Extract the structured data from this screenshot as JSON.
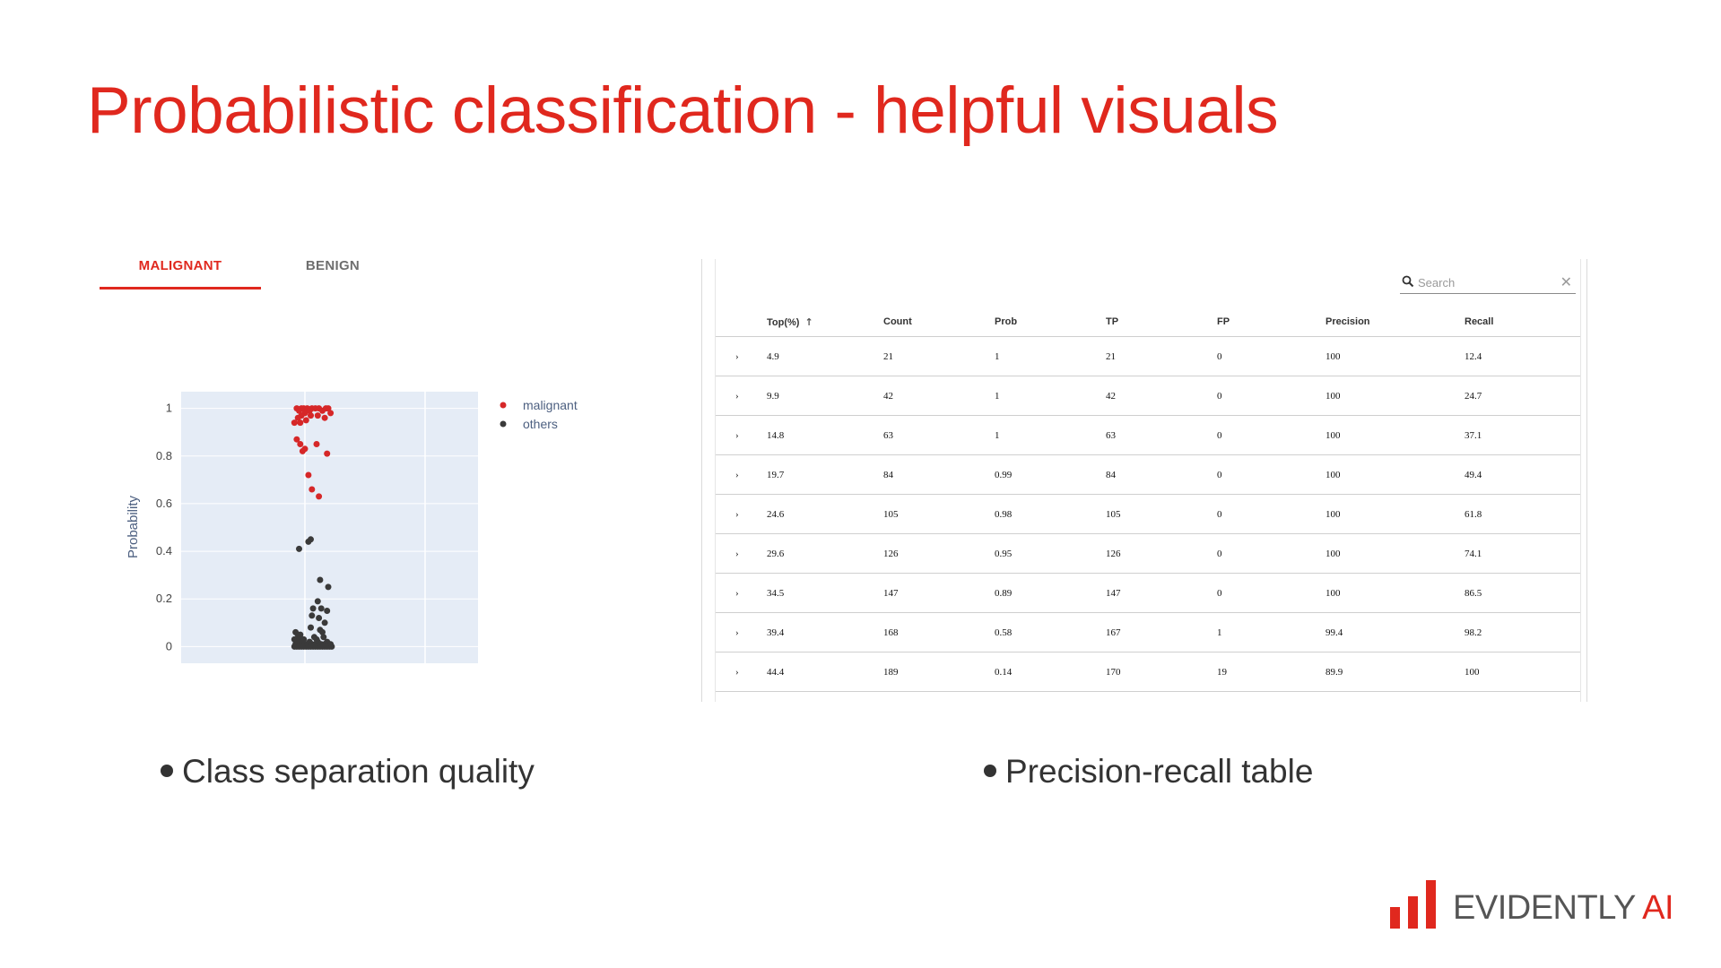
{
  "slide": {
    "title": "Probabilistic classification - helpful visuals",
    "bullets": [
      "Class separation quality",
      "Precision-recall table"
    ],
    "accent_color": "#e0281e"
  },
  "tabs": [
    {
      "label": "MALIGNANT",
      "active": true
    },
    {
      "label": "BENIGN",
      "active": false
    }
  ],
  "chart_data": {
    "type": "scatter",
    "ylabel": "Probability",
    "ylim": [
      -0.07,
      1.07
    ],
    "yticks": [
      "0",
      "0.2",
      "0.4",
      "0.6",
      "0.8",
      "1"
    ],
    "grid": true,
    "legend_position": "top-right",
    "background": "#e5ecf6",
    "series": [
      {
        "name": "malignant",
        "color": "#d62728",
        "points": [
          [
            -0.07,
            1.0
          ],
          [
            -0.05,
            0.99
          ],
          [
            -0.03,
            1.0
          ],
          [
            -0.01,
            1.0
          ],
          [
            0.0,
            0.98
          ],
          [
            0.02,
            1.0
          ],
          [
            0.04,
            0.99
          ],
          [
            0.06,
            1.0
          ],
          [
            0.09,
            1.0
          ],
          [
            0.12,
            1.0
          ],
          [
            0.15,
            0.99
          ],
          [
            0.18,
            1.0
          ],
          [
            0.2,
            1.0
          ],
          [
            0.22,
            0.98
          ],
          [
            -0.06,
            0.96
          ],
          [
            -0.03,
            0.97
          ],
          [
            0.01,
            0.95
          ],
          [
            0.05,
            0.97
          ],
          [
            0.11,
            0.97
          ],
          [
            0.17,
            0.96
          ],
          [
            -0.09,
            0.94
          ],
          [
            -0.04,
            0.94
          ],
          [
            -0.07,
            0.87
          ],
          [
            -0.04,
            0.85
          ],
          [
            -0.02,
            0.82
          ],
          [
            0.0,
            0.83
          ],
          [
            0.1,
            0.85
          ],
          [
            0.19,
            0.81
          ],
          [
            0.03,
            0.72
          ],
          [
            0.06,
            0.66
          ],
          [
            0.12,
            0.63
          ]
        ]
      },
      {
        "name": "others",
        "color": "#3a3a3a",
        "points": [
          [
            0.05,
            0.45
          ],
          [
            0.03,
            0.44
          ],
          [
            -0.05,
            0.41
          ],
          [
            0.13,
            0.28
          ],
          [
            0.2,
            0.25
          ],
          [
            0.11,
            0.19
          ],
          [
            0.07,
            0.16
          ],
          [
            0.14,
            0.16
          ],
          [
            0.19,
            0.15
          ],
          [
            0.06,
            0.13
          ],
          [
            0.12,
            0.12
          ],
          [
            0.17,
            0.1
          ],
          [
            0.05,
            0.08
          ],
          [
            0.13,
            0.07
          ],
          [
            0.15,
            0.06
          ],
          [
            -0.08,
            0.06
          ],
          [
            -0.06,
            0.05
          ],
          [
            -0.04,
            0.05
          ],
          [
            0.08,
            0.04
          ],
          [
            0.16,
            0.04
          ],
          [
            -0.09,
            0.03
          ],
          [
            -0.05,
            0.03
          ],
          [
            -0.01,
            0.03
          ],
          [
            0.04,
            0.02
          ],
          [
            0.1,
            0.03
          ],
          [
            0.19,
            0.02
          ],
          [
            -0.08,
            0.01
          ],
          [
            -0.07,
            0.02
          ],
          [
            -0.03,
            0.01
          ],
          [
            -0.02,
            0.02
          ],
          [
            0.0,
            0.01
          ],
          [
            0.02,
            0.01
          ],
          [
            0.06,
            0.01
          ],
          [
            0.09,
            0.01
          ],
          [
            0.11,
            0.02
          ],
          [
            0.14,
            0.01
          ],
          [
            0.17,
            0.01
          ],
          [
            0.2,
            0.01
          ],
          [
            0.22,
            0.01
          ],
          [
            -0.09,
            0.0
          ],
          [
            -0.07,
            0.0
          ],
          [
            -0.05,
            0.0
          ],
          [
            -0.03,
            0.0
          ],
          [
            -0.01,
            0.0
          ],
          [
            0.01,
            0.0
          ],
          [
            0.03,
            0.0
          ],
          [
            0.05,
            0.0
          ],
          [
            0.07,
            0.0
          ],
          [
            0.09,
            0.0
          ],
          [
            0.11,
            0.0
          ],
          [
            0.13,
            0.0
          ],
          [
            0.15,
            0.0
          ],
          [
            0.17,
            0.0
          ],
          [
            0.19,
            0.0
          ],
          [
            0.21,
            0.0
          ],
          [
            0.23,
            0.0
          ]
        ]
      }
    ]
  },
  "table": {
    "search_placeholder": "Search",
    "sort_icon": "arrow-up-icon",
    "columns": [
      "Top(%)",
      "Count",
      "Prob",
      "TP",
      "FP",
      "Precision",
      "Recall"
    ],
    "rows": [
      [
        "4.9",
        "21",
        "1",
        "21",
        "0",
        "100",
        "12.4"
      ],
      [
        "9.9",
        "42",
        "1",
        "42",
        "0",
        "100",
        "24.7"
      ],
      [
        "14.8",
        "63",
        "1",
        "63",
        "0",
        "100",
        "37.1"
      ],
      [
        "19.7",
        "84",
        "0.99",
        "84",
        "0",
        "100",
        "49.4"
      ],
      [
        "24.6",
        "105",
        "0.98",
        "105",
        "0",
        "100",
        "61.8"
      ],
      [
        "29.6",
        "126",
        "0.95",
        "126",
        "0",
        "100",
        "74.1"
      ],
      [
        "34.5",
        "147",
        "0.89",
        "147",
        "0",
        "100",
        "86.5"
      ],
      [
        "39.4",
        "168",
        "0.58",
        "167",
        "1",
        "99.4",
        "98.2"
      ],
      [
        "44.4",
        "189",
        "0.14",
        "170",
        "19",
        "89.9",
        "100"
      ]
    ]
  },
  "logo": {
    "main": "EVIDENTLY",
    "accent": "AI"
  }
}
